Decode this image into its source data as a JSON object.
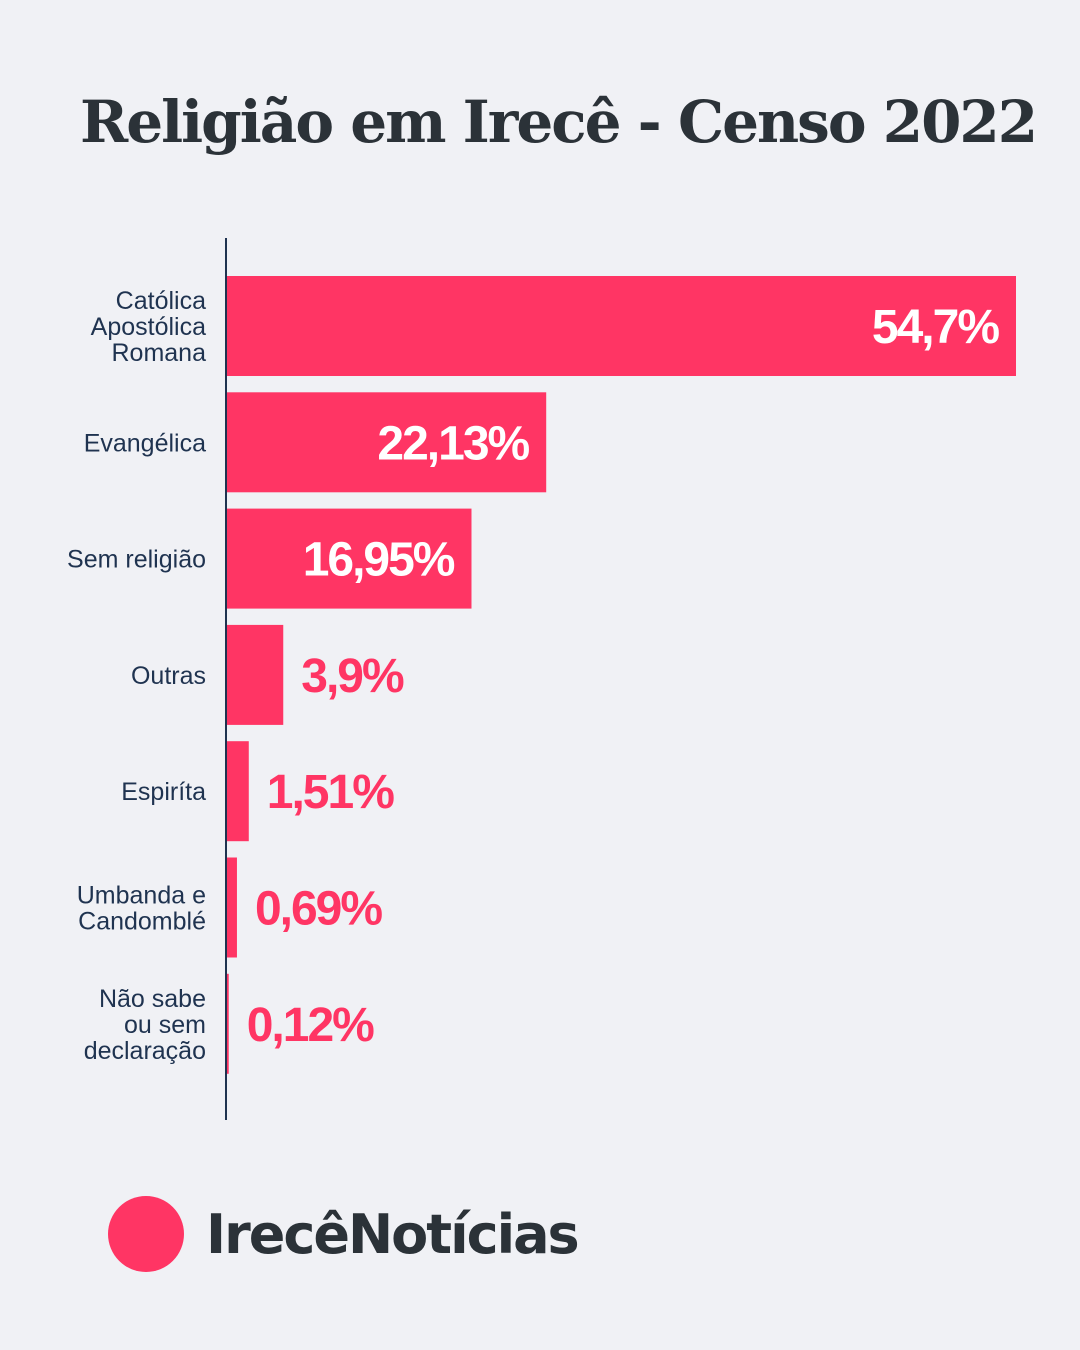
{
  "chart_data": {
    "type": "bar",
    "orientation": "horizontal",
    "title": "Religião em Irecê - Censo 2022",
    "categories": [
      [
        "Católica",
        "Apostólica",
        "Romana"
      ],
      [
        "Evangélica"
      ],
      [
        "Sem religião"
      ],
      [
        "Outras"
      ],
      [
        "Espiríta"
      ],
      [
        "Umbanda e",
        "Candomblé"
      ],
      [
        "Não sabe",
        "ou sem",
        "declaração"
      ]
    ],
    "values": [
      54.7,
      22.13,
      16.95,
      3.9,
      1.51,
      0.69,
      0.12
    ],
    "value_labels": [
      "54,7%",
      "22,13%",
      "16,95%",
      "3,9%",
      "1,51%",
      "0,69%",
      "0,12%"
    ],
    "unit": "%",
    "xlim": [
      0,
      54.7
    ],
    "grid": false,
    "bar_color": "#ff3564",
    "label_color": "#1f3350"
  },
  "brand": {
    "name": "IrecêNotícias",
    "color": "#ff3564"
  }
}
